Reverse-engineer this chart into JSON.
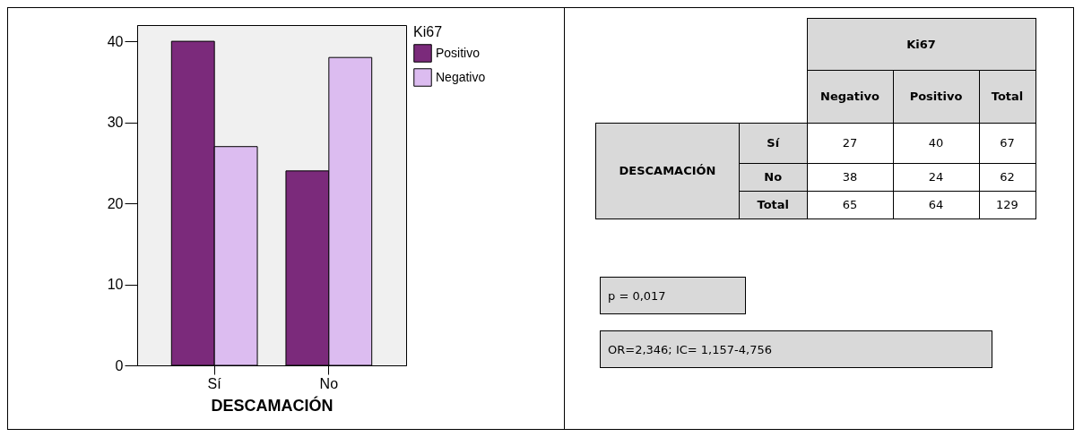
{
  "chart_data": [
    {
      "type": "bar",
      "categories": [
        "Sí",
        "No"
      ],
      "xlabel": "DESCAMACIÓN",
      "legend_title": "Ki67",
      "legend": "right",
      "grid": false,
      "ylim": [
        0,
        42
      ],
      "yticks": [
        0,
        10,
        20,
        30,
        40
      ],
      "series": [
        {
          "name": "Positivo",
          "color": "#7b2a7b",
          "values": [
            40,
            24
          ]
        },
        {
          "name": "Negativo",
          "color": "#dcbcf0",
          "values": [
            27,
            38
          ]
        }
      ]
    },
    {
      "type": "other",
      "annotations": [
        "Ki67",
        "Negativo",
        "Positivo",
        "Total",
        "DESCAMACIÓN",
        "Sí",
        "27",
        "40",
        "67",
        "No",
        "38",
        "24",
        "62",
        "Total",
        "65",
        "64",
        "129",
        "p = 0,017",
        "OR=2,346; IC= 1,157-4,756"
      ]
    }
  ]
}
